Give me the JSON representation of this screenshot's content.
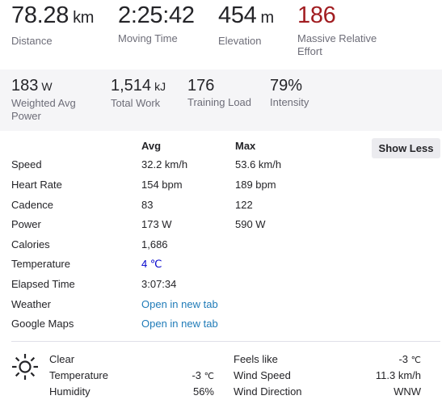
{
  "primary_stats": [
    {
      "value": "78.28",
      "unit": "km",
      "label": "Distance"
    },
    {
      "value": "2:25:42",
      "unit": "",
      "label": "Moving Time"
    },
    {
      "value": "454",
      "unit": "m",
      "label": "Elevation"
    },
    {
      "value": "186",
      "unit": "",
      "label": "Massive Relative Effort"
    }
  ],
  "secondary_stats": [
    {
      "value": "183",
      "unit": "W",
      "label": "Weighted Avg Power"
    },
    {
      "value": "1,514",
      "unit": "kJ",
      "label": "Total Work"
    },
    {
      "value": "176",
      "unit": "",
      "label": "Training Load"
    },
    {
      "value": "79%",
      "unit": "",
      "label": "Intensity"
    }
  ],
  "details": {
    "col_avg": "Avg",
    "col_max": "Max",
    "toggle_label": "Show Less",
    "rows": [
      {
        "name": "Speed",
        "avg": "32.2 km/h",
        "max": "53.6 km/h"
      },
      {
        "name": "Heart Rate",
        "avg": "154 bpm",
        "max": "189 bpm"
      },
      {
        "name": "Cadence",
        "avg": "83",
        "max": "122"
      },
      {
        "name": "Power",
        "avg": "173 W",
        "max": "590 W"
      },
      {
        "name": "Calories",
        "avg": "1,686",
        "max": ""
      },
      {
        "name": "Temperature",
        "avg": "4",
        "avg_unit": "℃",
        "max": ""
      },
      {
        "name": "Elapsed Time",
        "avg": "3:07:34",
        "max": ""
      },
      {
        "name": "Weather",
        "link": "Open in new tab"
      },
      {
        "name": "Google Maps",
        "link": "Open in new tab"
      }
    ]
  },
  "weather": {
    "icon": "sun-icon",
    "condition": "Clear",
    "temperature_label": "Temperature",
    "temperature_value": "-3",
    "temperature_unit": "℃",
    "humidity_label": "Humidity",
    "humidity_value": "56%",
    "feels_like_label": "Feels like",
    "feels_like_value": "-3",
    "feels_like_unit": "℃",
    "wind_speed_label": "Wind Speed",
    "wind_speed_value": "11.3 km/h",
    "wind_direction_label": "Wind Direction",
    "wind_direction_value": "WNW"
  },
  "colors": {
    "effort": "#a11d21",
    "link": "#1f7bb8",
    "cold_temp": "#0000cc",
    "band_bg": "#f5f5f7"
  }
}
